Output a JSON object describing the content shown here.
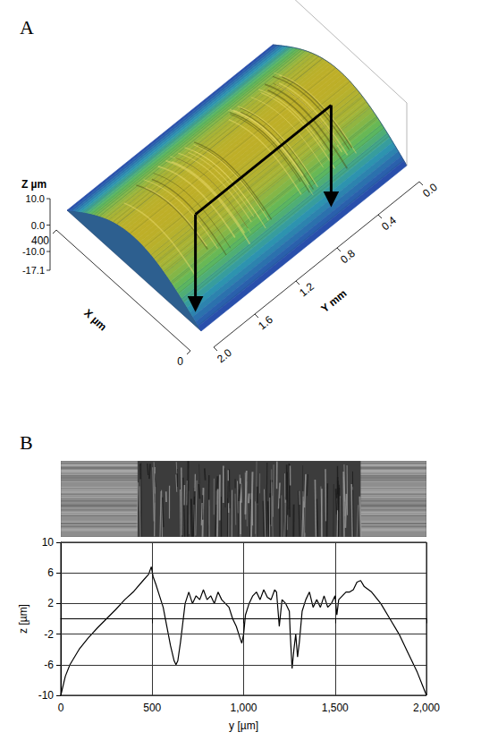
{
  "panel_labels": [
    "A",
    "B"
  ],
  "surface_3d": {
    "z_axis_label": "Z µm",
    "z_ticks": [
      {
        "value": 10,
        "label": "10.0"
      },
      {
        "value": 0,
        "label": "0.0"
      },
      {
        "value": -10,
        "label": "-10.0"
      },
      {
        "value": -17.1,
        "label": "-17.1"
      }
    ],
    "y_axis_label": "Y mm",
    "y_ticks": [
      {
        "value": 0,
        "label": "0.0"
      },
      {
        "value": 0.4,
        "label": "0.4"
      },
      {
        "value": 0.8,
        "label": "0.8"
      },
      {
        "value": 1.2,
        "label": "1.2"
      },
      {
        "value": 1.6,
        "label": "1.6"
      },
      {
        "value": 2,
        "label": "2.0"
      }
    ],
    "x_axis_label": "X µm",
    "x_ticks": [
      0,
      400
    ]
  },
  "chart_data": {
    "type": "line",
    "x_label": "y [µm]",
    "y_label": "z [µm]",
    "color": "#000000",
    "x": [
      0,
      25,
      50,
      100,
      150,
      200,
      250,
      300,
      350,
      400,
      450,
      480,
      495,
      505,
      520,
      540,
      560,
      580,
      600,
      620,
      630,
      640,
      655,
      670,
      680,
      700,
      720,
      740,
      760,
      780,
      800,
      820,
      840,
      860,
      880,
      900,
      920,
      940,
      960,
      980,
      990,
      1000,
      1010,
      1030,
      1050,
      1070,
      1090,
      1110,
      1130,
      1150,
      1170,
      1180,
      1195,
      1210,
      1230,
      1250,
      1255,
      1265,
      1275,
      1285,
      1295,
      1305,
      1320,
      1340,
      1360,
      1380,
      1400,
      1420,
      1440,
      1460,
      1480,
      1500,
      1510,
      1520,
      1540,
      1560,
      1580,
      1600,
      1620,
      1640,
      1660,
      1700,
      1750,
      1800,
      1850,
      1900,
      1950,
      1975,
      2000
    ],
    "values": [
      -10,
      -7.5,
      -6,
      -4,
      -2.5,
      -1.2,
      0,
      1.2,
      2.5,
      3.6,
      5,
      5.8,
      6.8,
      5.5,
      4.5,
      3,
      1.5,
      -1,
      -3.5,
      -5.5,
      -6,
      -5.5,
      -3,
      0,
      2,
      3.5,
      2,
      3,
      2.5,
      3.8,
      2.5,
      3,
      2,
      3.5,
      2.5,
      2,
      1.5,
      0,
      -1,
      -2.5,
      -3.2,
      -2,
      0.5,
      2,
      3,
      3.5,
      2.5,
      3.8,
      2.8,
      2.5,
      3.8,
      3.5,
      -1,
      2.5,
      2,
      1,
      -2,
      -6.5,
      -4,
      -2,
      -5,
      -3,
      1,
      2.5,
      3.5,
      1.5,
      2.5,
      1.5,
      3,
      1.5,
      2,
      3,
      0.5,
      2.5,
      3,
      3.5,
      3.5,
      3.8,
      4.8,
      5,
      4.2,
      3.5,
      2,
      0,
      -2,
      -4.5,
      -7,
      -8.5,
      -10
    ],
    "xlim": [
      0,
      2000
    ],
    "xticks": [
      0,
      500,
      1000,
      1500,
      2000
    ],
    "ylim": [
      -10,
      10
    ],
    "yticks": [
      -10,
      -6,
      -2,
      2,
      6,
      10
    ],
    "grid": true
  }
}
